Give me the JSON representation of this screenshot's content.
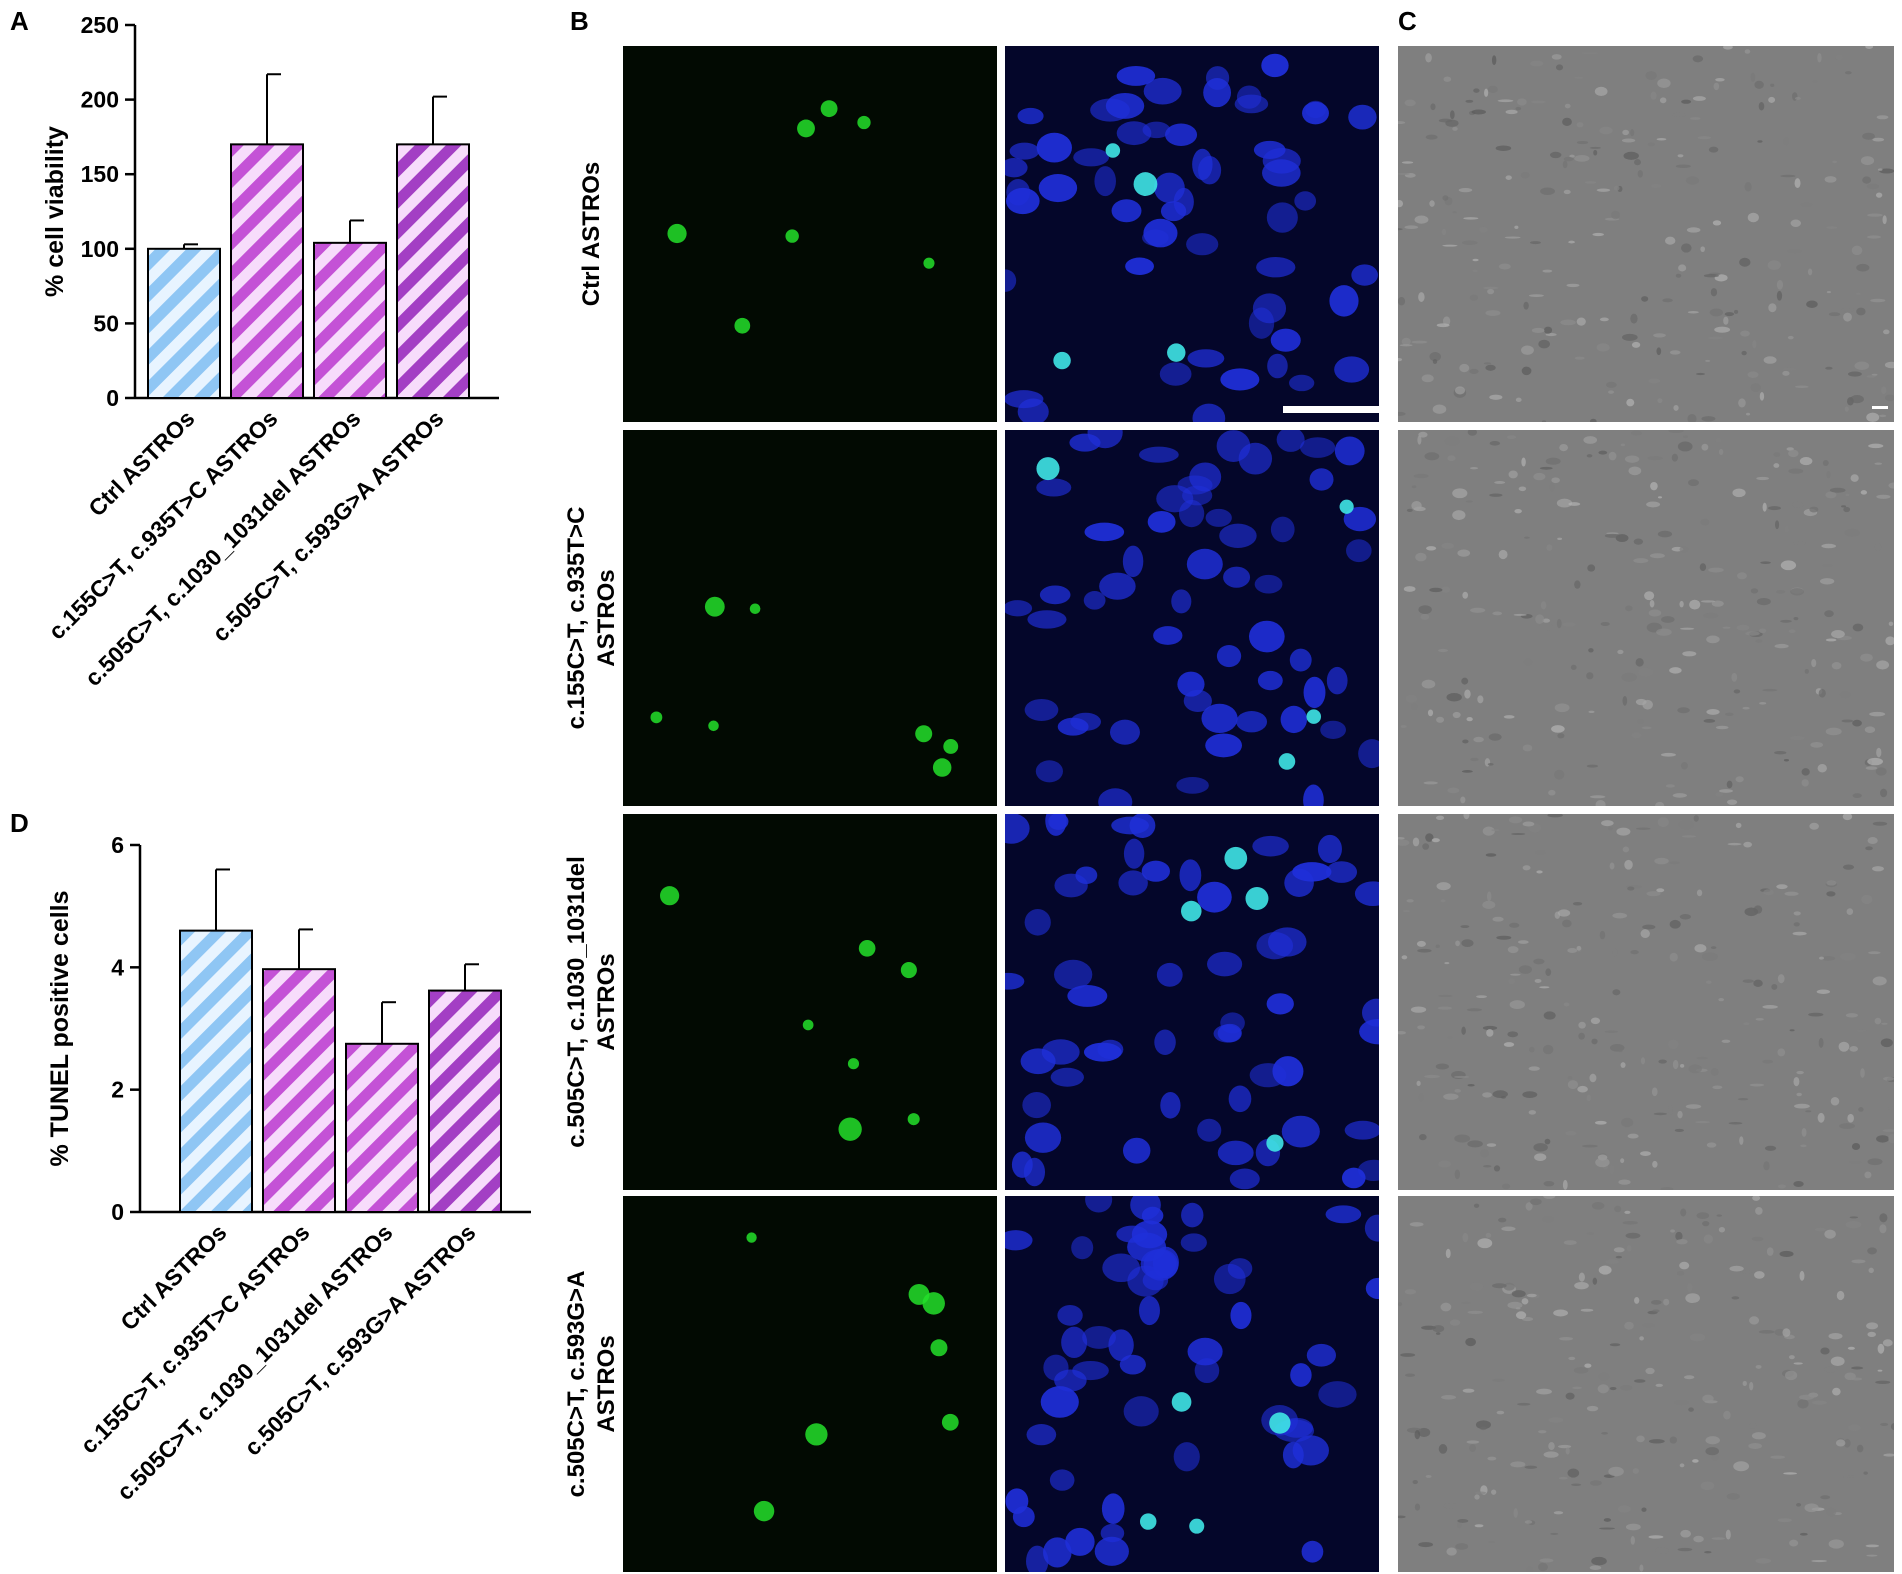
{
  "panels": {
    "a": "A",
    "b": "B",
    "c": "C",
    "d": "D"
  },
  "colors": {
    "ctrl": "#8fc6f4",
    "ctrl_stripe": "#e8f4ff",
    "variant": "#c452d6",
    "variant_stripe": "#f7dcfb",
    "variant_dark": "#a33fc4",
    "fitc": "#23e02a",
    "dapi": "#1f2fd9",
    "overlay": "#3fe6e6",
    "phase": "#7f7f7f"
  },
  "chart_data": [
    {
      "type": "bar",
      "panel": "A",
      "ylabel": "% cell viability",
      "categories": [
        "Ctrl ASTROs",
        "c.155C>T, c.935T>C ASTROs",
        "c.505C>T, c.1030_1031del ASTROs",
        "c.505C>T, c.593G>A ASTROs"
      ],
      "values": [
        100,
        170,
        104,
        170
      ],
      "errors": [
        3,
        47,
        15,
        32
      ],
      "ylim": [
        0,
        250
      ],
      "yticks": [
        0,
        50,
        100,
        150,
        200,
        250
      ]
    },
    {
      "type": "bar",
      "panel": "D",
      "ylabel": "% TUNEL positive cells",
      "categories": [
        "Ctrl ASTROs",
        "c.155C>T, c.935T>C ASTROs",
        "c.505C>T, c.1030_1031del ASTROs",
        "c.505C>T, c.593G>A ASTROs"
      ],
      "values": [
        4.6,
        3.97,
        2.75,
        3.62
      ],
      "errors": [
        1.0,
        0.65,
        0.68,
        0.43
      ],
      "ylim": [
        0,
        6
      ],
      "yticks": [
        0,
        2,
        4,
        6
      ]
    }
  ],
  "micrograph_rows": [
    {
      "label": [
        "Ctrl ASTROs"
      ]
    },
    {
      "label": [
        "c.155C>T, c.935T>C",
        "ASTROs"
      ]
    },
    {
      "label": [
        "c.505C>T, c.1030_1031del",
        "ASTROs"
      ]
    },
    {
      "label": [
        "c.505C>T, c.593G>A",
        "ASTROs"
      ]
    }
  ]
}
